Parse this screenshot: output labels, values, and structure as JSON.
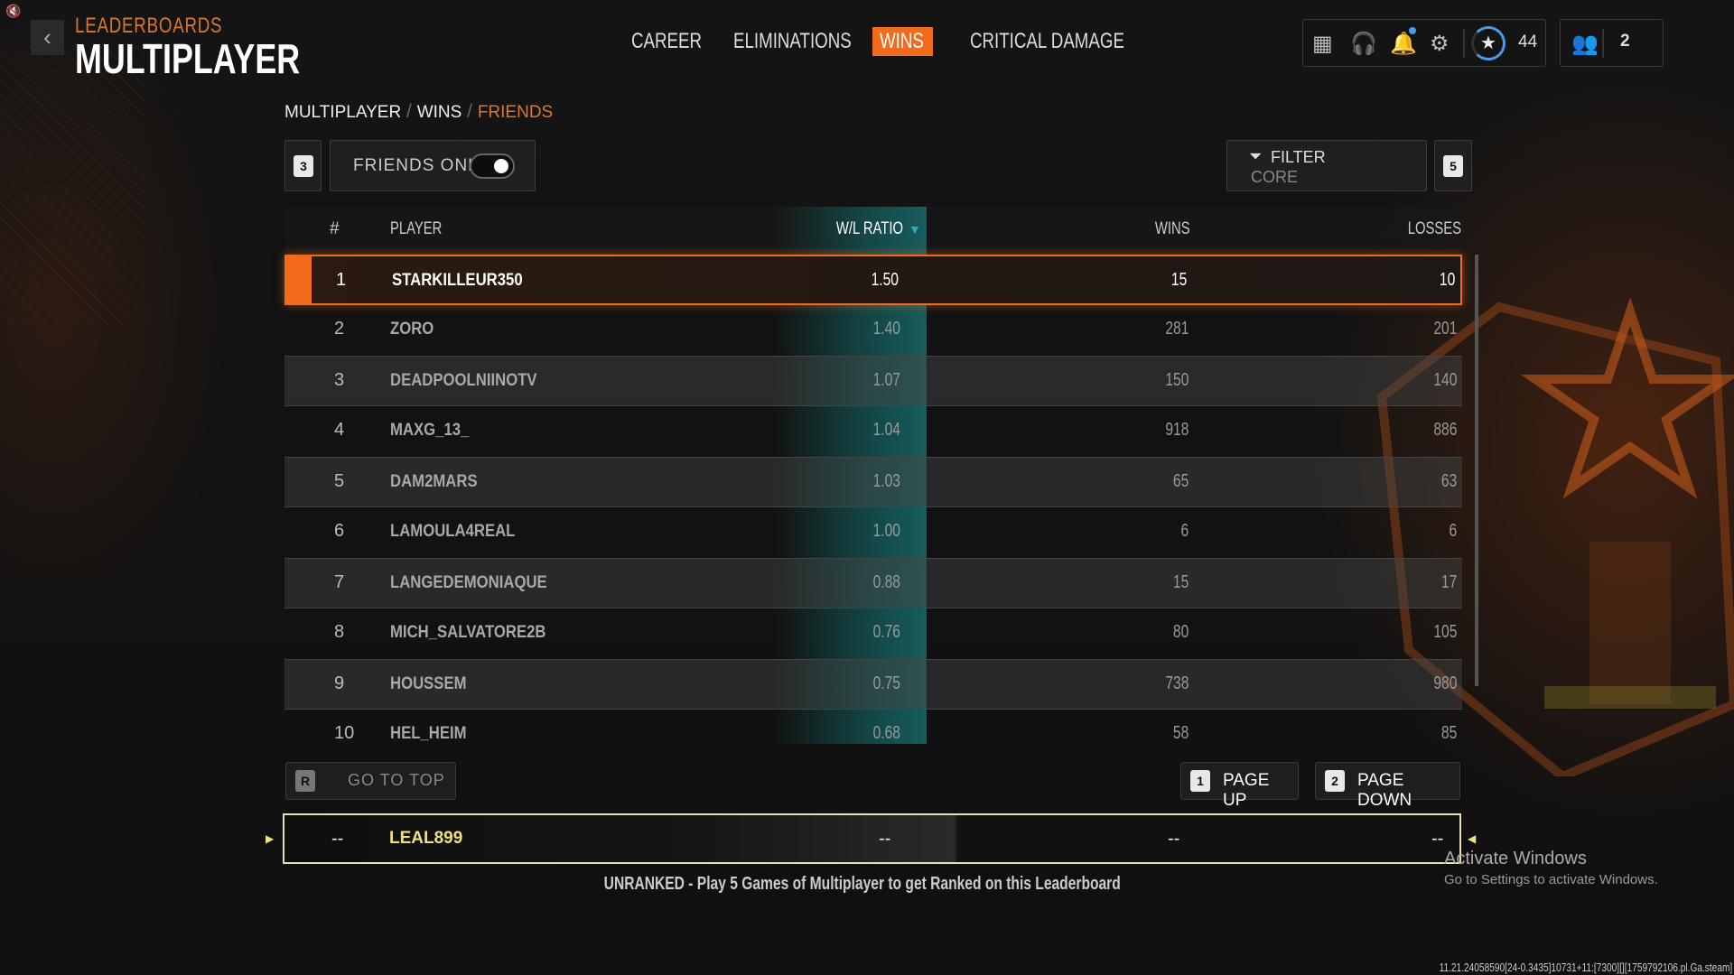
{
  "header": {
    "super_title": "LEADERBOARDS",
    "title": "MULTIPLAYER"
  },
  "tabs": [
    {
      "label": "CAREER",
      "active": false
    },
    {
      "label": "ELIMINATIONS",
      "active": false
    },
    {
      "label": "WINS",
      "active": true
    },
    {
      "label": "CRITICAL DAMAGE",
      "active": false
    }
  ],
  "topbar": {
    "level": "44",
    "party_count": "2",
    "notification_dot_color": "#4a9be8"
  },
  "breadcrumb": [
    "MULTIPLAYER",
    "WINS",
    "FRIENDS"
  ],
  "controls": {
    "friends_key": "3",
    "friends_only_label": "FRIENDS ONLY",
    "friends_only_on": true,
    "filter_label": "FILTER",
    "filter_value": "CORE",
    "filter_key": "5"
  },
  "table": {
    "columns": {
      "rank": "#",
      "player": "PLAYER",
      "wl": "W/L RATIO",
      "wins": "WINS",
      "losses": "LOSSES"
    },
    "sorted_by": "W/L RATIO",
    "rows": [
      {
        "rank": "1",
        "player": "STARKILLEUR350",
        "wl": "1.50",
        "wins": "15",
        "losses": "10"
      },
      {
        "rank": "2",
        "player": "ZORO",
        "wl": "1.40",
        "wins": "281",
        "losses": "201"
      },
      {
        "rank": "3",
        "player": "DEADPOOLNIINOTV",
        "wl": "1.07",
        "wins": "150",
        "losses": "140"
      },
      {
        "rank": "4",
        "player": "MAXG_13_",
        "wl": "1.04",
        "wins": "918",
        "losses": "886"
      },
      {
        "rank": "5",
        "player": "DAM2MARS",
        "wl": "1.03",
        "wins": "65",
        "losses": "63"
      },
      {
        "rank": "6",
        "player": "LAMOULA4REAL",
        "wl": "1.00",
        "wins": "6",
        "losses": "6"
      },
      {
        "rank": "7",
        "player": "LANGEDEMONIAQUE",
        "wl": "0.88",
        "wins": "15",
        "losses": "17"
      },
      {
        "rank": "8",
        "player": "MICH_SALVATORE2B",
        "wl": "0.76",
        "wins": "80",
        "losses": "105"
      },
      {
        "rank": "9",
        "player": "HOUSSEM",
        "wl": "0.75",
        "wins": "738",
        "losses": "980"
      },
      {
        "rank": "10",
        "player": "HEL_HEIM",
        "wl": "0.68",
        "wins": "58",
        "losses": "85"
      }
    ]
  },
  "nav_buttons": {
    "go_top_key": "R",
    "go_top": "GO TO TOP",
    "page_up_key": "1",
    "page_up": "PAGE UP",
    "page_down_key": "2",
    "page_down": "PAGE DOWN"
  },
  "own_row": {
    "rank": "--",
    "player": "LEAL899",
    "wl": "--",
    "wins": "--",
    "losses": "--"
  },
  "unranked_message": "UNRANKED - Play 5 Games of Multiplayer to get Ranked on this Leaderboard",
  "watermark": {
    "title": "Activate Windows",
    "subtitle": "Go to Settings to activate Windows."
  },
  "version": "11.21.24058590[24-0.3435]10731+11:[7300][][1759792106.pl.Ga.steam]",
  "colors": {
    "accent": "#f26b1d",
    "teal": "#1c6e6e",
    "own_name": "#f0e080"
  }
}
